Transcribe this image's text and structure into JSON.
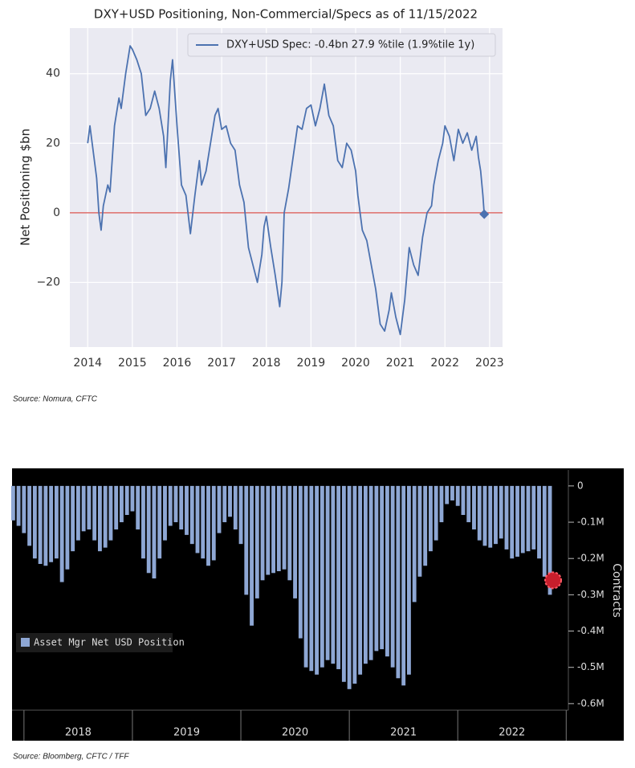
{
  "chart_data": [
    {
      "type": "line",
      "title": "DXY+USD Positioning, Non-Commercial/Specs as of 11/15/2022",
      "ylabel": "Net Positioning $bn",
      "source": "Source: Nomura, CFTC",
      "x": [
        2014.0,
        2014.05,
        2014.1,
        2014.2,
        2014.25,
        2014.3,
        2014.35,
        2014.45,
        2014.5,
        2014.6,
        2014.7,
        2014.75,
        2014.85,
        2014.95,
        2015.0,
        2015.1,
        2015.2,
        2015.3,
        2015.4,
        2015.5,
        2015.6,
        2015.7,
        2015.75,
        2015.85,
        2015.9,
        2016.0,
        2016.1,
        2016.2,
        2016.3,
        2016.4,
        2016.5,
        2016.55,
        2016.65,
        2016.75,
        2016.85,
        2016.92,
        2017.0,
        2017.1,
        2017.2,
        2017.3,
        2017.4,
        2017.5,
        2017.6,
        2017.7,
        2017.8,
        2017.9,
        2017.95,
        2018.0,
        2018.1,
        2018.2,
        2018.3,
        2018.35,
        2018.4,
        2018.5,
        2018.6,
        2018.7,
        2018.8,
        2018.9,
        2019.0,
        2019.1,
        2019.2,
        2019.3,
        2019.4,
        2019.5,
        2019.6,
        2019.7,
        2019.8,
        2019.9,
        2020.0,
        2020.05,
        2020.15,
        2020.25,
        2020.35,
        2020.45,
        2020.55,
        2020.65,
        2020.75,
        2020.8,
        2020.9,
        2021.0,
        2021.1,
        2021.2,
        2021.3,
        2021.4,
        2021.5,
        2021.6,
        2021.7,
        2021.75,
        2021.85,
        2021.95,
        2022.0,
        2022.1,
        2022.2,
        2022.3,
        2022.4,
        2022.5,
        2022.6,
        2022.7,
        2022.75,
        2022.8,
        2022.85,
        2022.88
      ],
      "series": [
        {
          "name": "DXY+USD Spec:  -0.4bn 27.9 %tile (1.9%tile 1y)",
          "color": "#4c72b0",
          "values": [
            20,
            25,
            20,
            10,
            0,
            -5,
            2,
            8,
            6,
            25,
            33,
            30,
            40,
            48,
            47,
            44,
            40,
            28,
            30,
            35,
            30,
            22,
            13,
            38,
            44,
            25,
            8,
            5,
            -6,
            5,
            15,
            8,
            12,
            20,
            28,
            30,
            24,
            25,
            20,
            18,
            8,
            3,
            -10,
            -15,
            -20,
            -12,
            -4,
            -1,
            -10,
            -18,
            -27,
            -20,
            0,
            7,
            16,
            25,
            24,
            30,
            31,
            25,
            30,
            37,
            28,
            25,
            15,
            13,
            20,
            18,
            12,
            5,
            -5,
            -8,
            -15,
            -22,
            -32,
            -34,
            -28,
            -23,
            -30,
            -35,
            -25,
            -10,
            -15,
            -18,
            -7,
            0,
            2,
            8,
            15,
            20,
            25,
            22,
            15,
            24,
            20,
            23,
            18,
            22,
            16,
            12,
            5,
            -0.4
          ]
        }
      ],
      "reference_line": {
        "value": 0,
        "color": "#d9534f"
      },
      "xlim": [
        2013.6,
        2023.29
      ],
      "xticks": [
        2014,
        2015,
        2016,
        2017,
        2018,
        2019,
        2020,
        2021,
        2022,
        2023
      ],
      "ylim": [
        -38.6,
        53.1
      ],
      "yticks": [
        40,
        20,
        0,
        {
          "value": -20,
          "label": "−20"
        }
      ],
      "grid": true,
      "legend": "upper right"
    },
    {
      "type": "bar",
      "legend_label": "Asset Mgr Net USD Position",
      "ylabel": "Contracts",
      "source": "Source: Bloomberg, CFTC / TFF",
      "color": "#8ea7d4",
      "x": [
        2017.9,
        2017.95,
        2018.0,
        2018.05,
        2018.1,
        2018.15,
        2018.2,
        2018.25,
        2018.3,
        2018.35,
        2018.4,
        2018.45,
        2018.5,
        2018.55,
        2018.6,
        2018.65,
        2018.7,
        2018.75,
        2018.8,
        2018.85,
        2018.9,
        2018.95,
        2019.0,
        2019.05,
        2019.1,
        2019.15,
        2019.2,
        2019.25,
        2019.3,
        2019.35,
        2019.4,
        2019.45,
        2019.5,
        2019.55,
        2019.6,
        2019.65,
        2019.7,
        2019.75,
        2019.8,
        2019.85,
        2019.9,
        2019.95,
        2020.0,
        2020.05,
        2020.1,
        2020.15,
        2020.2,
        2020.25,
        2020.3,
        2020.35,
        2020.4,
        2020.45,
        2020.5,
        2020.55,
        2020.6,
        2020.65,
        2020.7,
        2020.75,
        2020.8,
        2020.85,
        2020.9,
        2020.95,
        2021.0,
        2021.05,
        2021.1,
        2021.15,
        2021.2,
        2021.25,
        2021.3,
        2021.35,
        2021.4,
        2021.45,
        2021.5,
        2021.55,
        2021.6,
        2021.65,
        2021.7,
        2021.75,
        2021.8,
        2021.85,
        2021.9,
        2021.95,
        2022.0,
        2022.05,
        2022.1,
        2022.15,
        2022.2,
        2022.25,
        2022.3,
        2022.35,
        2022.4,
        2022.45,
        2022.5,
        2022.55,
        2022.6,
        2022.65,
        2022.7,
        2022.75,
        2022.8,
        2022.85
      ],
      "values": [
        -95000,
        -110000,
        -130000,
        -165000,
        -200000,
        -215000,
        -220000,
        -210000,
        -200000,
        -265000,
        -230000,
        -180000,
        -150000,
        -125000,
        -120000,
        -150000,
        -180000,
        -170000,
        -150000,
        -120000,
        -100000,
        -80000,
        -70000,
        -120000,
        -200000,
        -240000,
        -255000,
        -200000,
        -150000,
        -110000,
        -100000,
        -120000,
        -135000,
        -160000,
        -185000,
        -200000,
        -220000,
        -205000,
        -130000,
        -100000,
        -85000,
        -120000,
        -160000,
        -300000,
        -385000,
        -310000,
        -260000,
        -245000,
        -240000,
        -235000,
        -230000,
        -260000,
        -310000,
        -420000,
        -500000,
        -510000,
        -520000,
        -500000,
        -480000,
        -490000,
        -505000,
        -540000,
        -560000,
        -545000,
        -520000,
        -490000,
        -480000,
        -455000,
        -450000,
        -470000,
        -500000,
        -530000,
        -550000,
        -520000,
        -320000,
        -250000,
        -220000,
        -180000,
        -150000,
        -100000,
        -50000,
        -40000,
        -55000,
        -80000,
        -100000,
        -120000,
        -150000,
        -165000,
        -170000,
        -160000,
        -145000,
        -175000,
        -200000,
        -195000,
        -185000,
        -180000,
        -175000,
        -200000,
        -250000,
        -300000
      ],
      "xlim": [
        2017.89,
        2023.02
      ],
      "xticks": [
        {
          "value": 2018.5,
          "label": "2018"
        },
        {
          "value": 2019.5,
          "label": "2019"
        },
        {
          "value": 2020.5,
          "label": "2020"
        },
        {
          "value": 2021.5,
          "label": "2021"
        },
        {
          "value": 2022.5,
          "label": "2022"
        }
      ],
      "x_separators": [
        2018,
        2019,
        2020,
        2021,
        2022,
        2023
      ],
      "ylim": [
        -618000,
        44000
      ],
      "yticks": [
        0,
        {
          "value": -100000,
          "label": "-0.1M"
        },
        {
          "value": -200000,
          "label": "-0.2M"
        },
        {
          "value": -300000,
          "label": "-0.3M"
        },
        {
          "value": -400000,
          "label": "-0.4M"
        },
        {
          "value": -500000,
          "label": "-0.5M"
        },
        {
          "value": -600000,
          "label": "-0.6M"
        }
      ],
      "grid": false,
      "legend": "lower left"
    }
  ]
}
